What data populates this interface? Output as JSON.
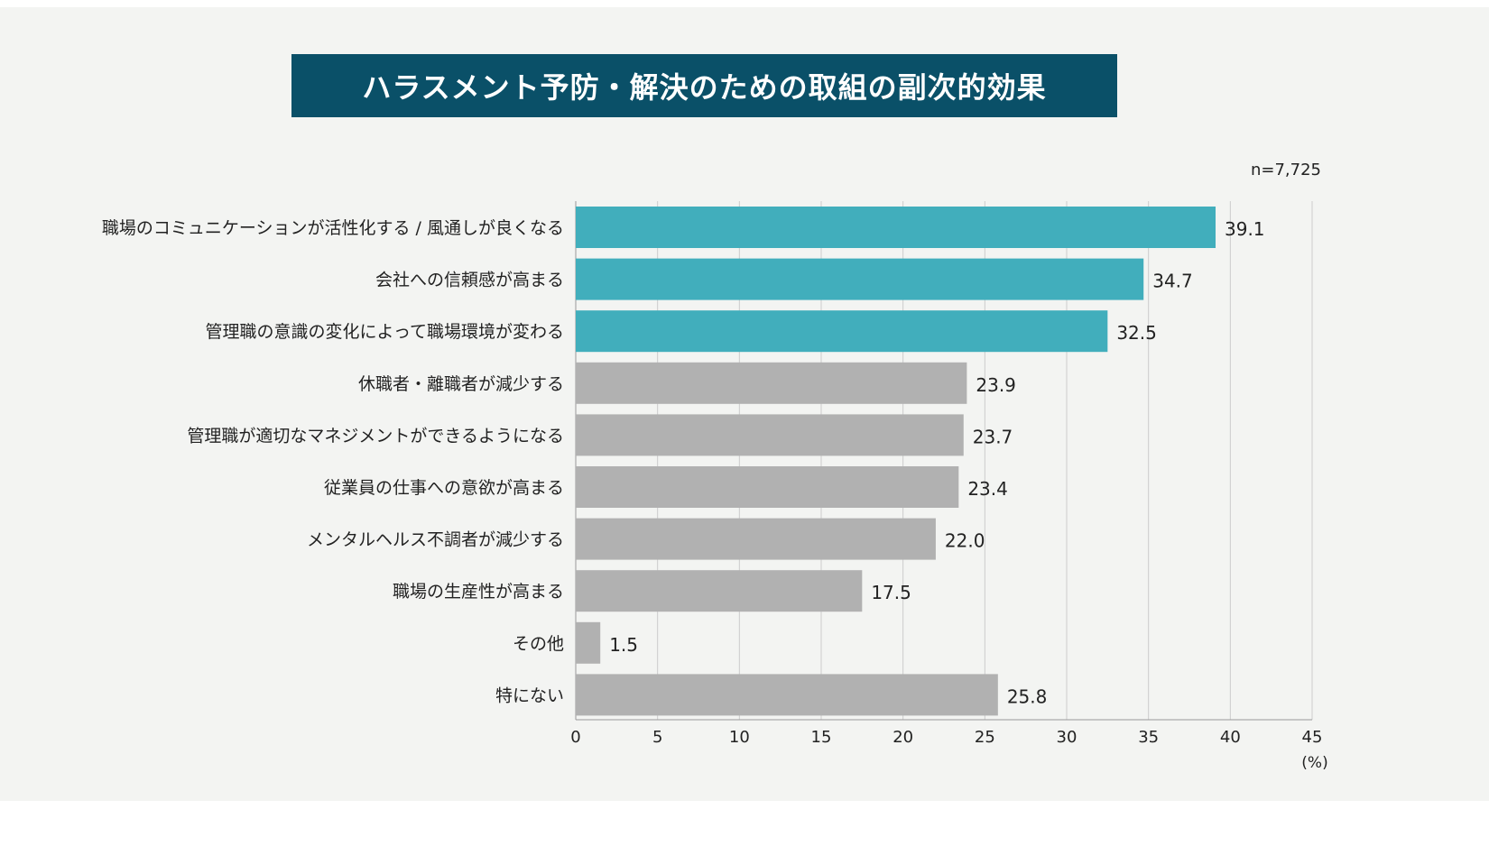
{
  "chart_data": {
    "type": "bar",
    "orientation": "horizontal",
    "title": "ハラスメント予防・解決のための取組の副次的効果",
    "sample_size": "n=7,725",
    "xlabel": "(%)",
    "xlim": [
      0,
      45
    ],
    "xticks": [
      0,
      5,
      10,
      15,
      20,
      25,
      30,
      35,
      40,
      45
    ],
    "grid": "vertical",
    "categories": [
      "職場のコミュニケーションが活性化する / 風通しが良くなる",
      "会社への信頼感が高まる",
      "管理職の意識の変化によって職場環境が変わる",
      "休職者・離職者が減少する",
      "管理職が適切なマネジメントができるようになる",
      "従業員の仕事への意欲が高まる",
      "メンタルヘルス不調者が減少する",
      "職場の生産性が高まる",
      "その他",
      "特にない"
    ],
    "values": [
      39.1,
      34.7,
      32.5,
      23.9,
      23.7,
      23.4,
      22.0,
      17.5,
      1.5,
      25.8
    ],
    "value_labels": [
      "39.1",
      "34.7",
      "32.5",
      "23.9",
      "23.7",
      "23.4",
      "22.0",
      "17.5",
      "1.5",
      "25.8"
    ],
    "highlighted_count": 3,
    "colors": {
      "title_bg": "#0a5068",
      "highlight": "#41aebc",
      "default": "#b1b1b1",
      "grid": "#cccccc",
      "background": "#f3f4f2"
    }
  }
}
